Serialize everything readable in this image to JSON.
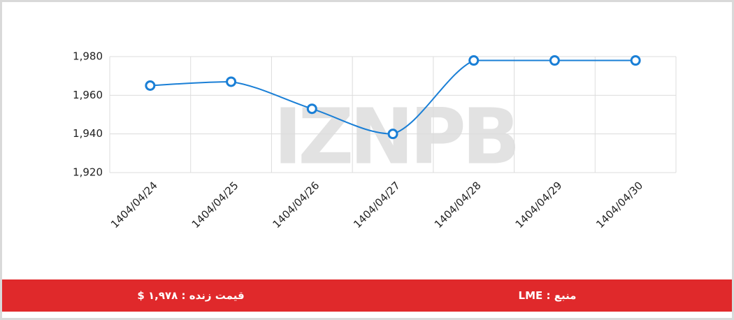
{
  "chart_data": {
    "type": "line",
    "categories": [
      "1404/04/24",
      "1404/04/25",
      "1404/04/26",
      "1404/04/27",
      "1404/04/28",
      "1404/04/29",
      "1404/04/30"
    ],
    "values": [
      1965,
      1967,
      1953,
      1940,
      1978,
      1978,
      1978
    ],
    "color": "#1a7fd6",
    "ylim": [
      1920,
      1980
    ],
    "yticks": [
      {
        "value": 1920,
        "label": "1,920"
      },
      {
        "value": 1940,
        "label": "1,940"
      },
      {
        "value": 1960,
        "label": "1,960"
      },
      {
        "value": 1980,
        "label": "1,980"
      }
    ],
    "grid": true,
    "watermark": "IZNPB"
  },
  "footer": {
    "price": "قیمت زنده : ۱,۹۷۸ $",
    "source": "منبع : LME"
  }
}
